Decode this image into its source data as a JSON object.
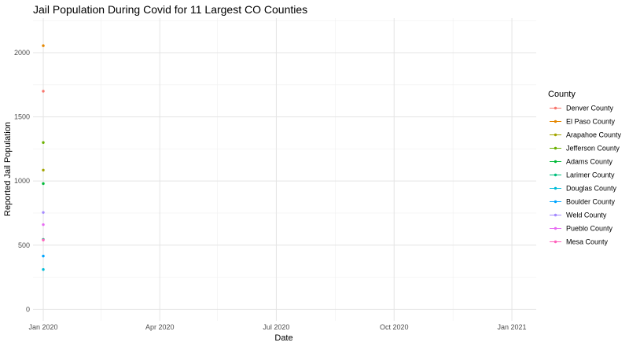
{
  "chart_data": {
    "type": "scatter",
    "title": "Jail Population During Covid for 11 Largest CO Counties",
    "xlabel": "Date",
    "ylabel": "Reported Jail Population",
    "x_range": [
      "2019-12-24",
      "2021-01-20"
    ],
    "x_ticks": [
      {
        "date": "2020-01-01",
        "label": "Jan 2020"
      },
      {
        "date": "2020-04-01",
        "label": "Apr 2020"
      },
      {
        "date": "2020-07-01",
        "label": "Jul 2020"
      },
      {
        "date": "2020-10-01",
        "label": "Oct 2020"
      },
      {
        "date": "2021-01-01",
        "label": "Jan 2021"
      }
    ],
    "x_minor_ticks": [
      "2020-02-15",
      "2020-05-16",
      "2020-08-16",
      "2020-11-16"
    ],
    "ylim": [
      -90,
      2270
    ],
    "y_ticks": [
      0,
      500,
      1000,
      1500,
      2000
    ],
    "y_minor_ticks": [
      250,
      750,
      1250,
      1750,
      2250
    ],
    "grid": true,
    "legend": {
      "title": "County",
      "position": "right"
    },
    "series": [
      {
        "name": "Denver County",
        "color": "#F8766D",
        "x": [
          "2020-01-01"
        ],
        "y": [
          1700
        ]
      },
      {
        "name": "El Paso County",
        "color": "#E58700",
        "x": [
          "2020-01-01"
        ],
        "y": [
          2055
        ]
      },
      {
        "name": "Arapahoe County",
        "color": "#A3A500",
        "x": [
          "2020-01-01"
        ],
        "y": [
          1085
        ]
      },
      {
        "name": "Jefferson County",
        "color": "#6BB100",
        "x": [
          "2020-01-01"
        ],
        "y": [
          1300
        ]
      },
      {
        "name": "Adams County",
        "color": "#00BA38",
        "x": [
          "2020-01-01"
        ],
        "y": [
          980
        ]
      },
      {
        "name": "Larimer County",
        "color": "#00BF7D",
        "x": [
          "2020-01-01"
        ],
        "y": [
          545
        ]
      },
      {
        "name": "Douglas County",
        "color": "#00BCD8",
        "x": [
          "2020-01-01"
        ],
        "y": [
          310
        ]
      },
      {
        "name": "Boulder County",
        "color": "#00A5FF",
        "x": [
          "2020-01-01"
        ],
        "y": [
          415
        ]
      },
      {
        "name": "Weld County",
        "color": "#A58AFF",
        "x": [
          "2020-01-01"
        ],
        "y": [
          755
        ]
      },
      {
        "name": "Pueblo County",
        "color": "#E76BF3",
        "x": [
          "2020-01-01"
        ],
        "y": [
          660
        ]
      },
      {
        "name": "Mesa County",
        "color": "#FF62BC",
        "x": [
          "2020-01-01"
        ],
        "y": [
          540
        ]
      }
    ]
  }
}
